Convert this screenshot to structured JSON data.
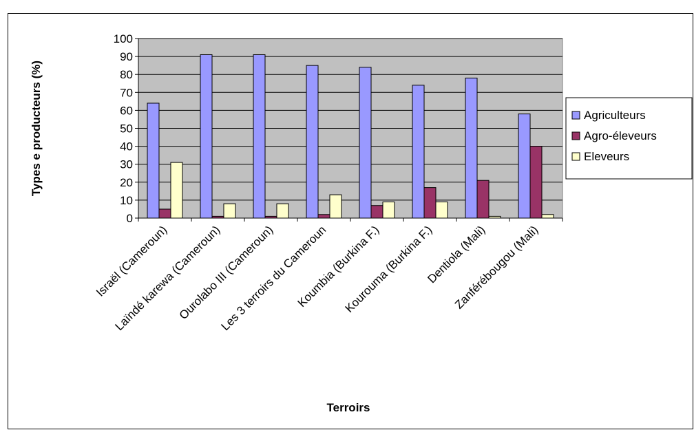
{
  "chart_data": {
    "type": "bar",
    "xlabel": "Terroirs",
    "ylabel": "Types e producteurs (%)",
    "ylim": [
      0,
      100
    ],
    "yticks": [
      0,
      10,
      20,
      30,
      40,
      50,
      60,
      70,
      80,
      90,
      100
    ],
    "grid": true,
    "legend_position": "right",
    "plot_background": "#c0c0c0",
    "categories": [
      "Israël (Cameroun)",
      "Laïndé karewa (Cameroun)",
      "Ourolabo III (Cameroun)",
      "Les 3 terroirs du Cameroun",
      "Koumbia (Burkina F.)",
      "Kourouma (Burkina F.)",
      "Dentiola (Mali)",
      "Zanférébougou (Mali)"
    ],
    "series": [
      {
        "name": "Agriculteurs",
        "color": "#9999ff",
        "values": [
          64,
          91,
          91,
          85,
          84,
          74,
          78,
          58
        ]
      },
      {
        "name": "Agro-éleveurs",
        "color": "#993366",
        "values": [
          5,
          1,
          1,
          2,
          7,
          17,
          21,
          40
        ]
      },
      {
        "name": "Eleveurs",
        "color": "#ffffcc",
        "values": [
          31,
          8,
          8,
          13,
          9,
          9,
          1,
          2
        ]
      }
    ]
  }
}
